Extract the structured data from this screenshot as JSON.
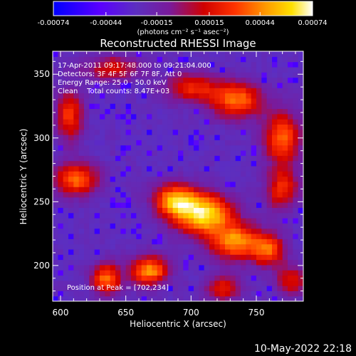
{
  "chart_data": {
    "type": "heatmap",
    "title": "Reconstructed RHESSI Image",
    "xlabel": "Heliocentric X (arcsec)",
    "ylabel": "Heliocentric Y (arcsec)",
    "xlim": [
      594,
      786
    ],
    "ylim": [
      172,
      368
    ],
    "x_ticks": [
      600,
      650,
      700,
      750
    ],
    "y_ticks": [
      200,
      250,
      300,
      350
    ],
    "colorbar": {
      "range": [
        -0.00074,
        0.00074
      ],
      "tick_values": [
        -0.00074,
        -0.00044,
        -0.00015,
        0.00015,
        0.00044,
        0.00074
      ],
      "tick_labels": [
        "-0.00074",
        "-0.00044",
        "-0.00015",
        "0.00015",
        "0.00044",
        "0.00074"
      ],
      "units_label": "(photons cm⁻² s⁻¹ asec⁻²)"
    },
    "annotations": [
      "17-Apr-2011 09:17:48.000 to 09:21:04.000",
      "Detectors: 3F 4F 5F 6F 7F 8F, Att 0",
      "Energy Range: 25.0 - 50.0 keV",
      "Clean    Total counts: 8.47E+03"
    ],
    "peak_annotation": "Position at Peak = [702,234]",
    "peak": {
      "x": 702,
      "y": 234
    },
    "bright_sources": [
      {
        "x": 710,
        "y": 240,
        "sx": 16,
        "sy": 11,
        "a": 1.0
      },
      {
        "x": 688,
        "y": 252,
        "sx": 12,
        "sy": 9,
        "a": 0.8
      },
      {
        "x": 735,
        "y": 218,
        "sx": 14,
        "sy": 10,
        "a": 0.78
      },
      {
        "x": 760,
        "y": 212,
        "sx": 8,
        "sy": 9,
        "a": 0.65
      },
      {
        "x": 668,
        "y": 196,
        "sx": 10,
        "sy": 8,
        "a": 0.82
      },
      {
        "x": 635,
        "y": 190,
        "sx": 8,
        "sy": 9,
        "a": 0.72
      },
      {
        "x": 612,
        "y": 268,
        "sx": 12,
        "sy": 9,
        "a": 0.7
      },
      {
        "x": 735,
        "y": 330,
        "sx": 14,
        "sy": 10,
        "a": 0.75
      },
      {
        "x": 770,
        "y": 300,
        "sx": 10,
        "sy": 14,
        "a": 0.7
      },
      {
        "x": 700,
        "y": 340,
        "sx": 14,
        "sy": 8,
        "a": 0.55
      },
      {
        "x": 607,
        "y": 318,
        "sx": 7,
        "sy": 14,
        "a": 0.6
      },
      {
        "x": 770,
        "y": 260,
        "sx": 9,
        "sy": 12,
        "a": 0.55
      },
      {
        "x": 640,
        "y": 355,
        "sx": 16,
        "sy": 7,
        "a": 0.45
      },
      {
        "x": 725,
        "y": 182,
        "sx": 10,
        "sy": 7,
        "a": 0.5
      },
      {
        "x": 777,
        "y": 188,
        "sx": 8,
        "sy": 8,
        "a": 0.5
      }
    ],
    "colormap": [
      [
        0.0,
        "#0000ff"
      ],
      [
        0.18,
        "#5a00ff"
      ],
      [
        0.32,
        "#5c2fc0"
      ],
      [
        0.45,
        "#7a1a9a"
      ],
      [
        0.58,
        "#d00000"
      ],
      [
        0.7,
        "#ff3300"
      ],
      [
        0.82,
        "#ff9a00"
      ],
      [
        0.92,
        "#ffe000"
      ],
      [
        1.0,
        "#ffffff"
      ]
    ]
  },
  "footer": {
    "timestamp": "10-May-2022 22:18"
  }
}
